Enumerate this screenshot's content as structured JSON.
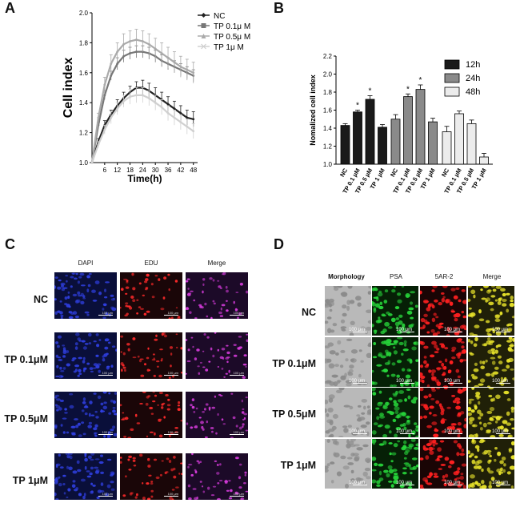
{
  "panels": {
    "a": {
      "letter": "A"
    },
    "b": {
      "letter": "B"
    },
    "c": {
      "letter": "C"
    },
    "d": {
      "letter": "D"
    }
  },
  "chart_data": [
    {
      "type": "line",
      "panel": "A",
      "xlabel": "Time(h)",
      "ylabel": "Cell index",
      "xlim": [
        0,
        50
      ],
      "ylim": [
        1.0,
        2.0
      ],
      "xticks": [
        6,
        12,
        18,
        24,
        30,
        36,
        42,
        48
      ],
      "yticks": [
        1.0,
        1.2,
        1.4,
        1.6,
        1.8,
        2.0
      ],
      "ytick_labels": [
        "1.0",
        "1.2",
        "1.4",
        "1.6",
        "1.8",
        "2.0"
      ],
      "legend_position": "top-right",
      "x": [
        0,
        3,
        6,
        9,
        12,
        15,
        18,
        21,
        24,
        27,
        30,
        33,
        36,
        39,
        42,
        45,
        48
      ],
      "series": [
        {
          "name": "NC",
          "color": "#222222",
          "marker": "diamond",
          "values": [
            1.0,
            1.14,
            1.25,
            1.32,
            1.38,
            1.43,
            1.47,
            1.5,
            1.5,
            1.48,
            1.45,
            1.42,
            1.39,
            1.36,
            1.33,
            1.3,
            1.29
          ],
          "error": [
            0.0,
            0.02,
            0.03,
            0.03,
            0.04,
            0.04,
            0.04,
            0.04,
            0.05,
            0.05,
            0.05,
            0.05,
            0.05,
            0.05,
            0.05,
            0.05,
            0.05
          ]
        },
        {
          "name": "TP 0.1μ M",
          "color": "#777777",
          "marker": "square",
          "values": [
            1.0,
            1.25,
            1.45,
            1.58,
            1.66,
            1.71,
            1.73,
            1.74,
            1.74,
            1.73,
            1.71,
            1.68,
            1.66,
            1.64,
            1.62,
            1.6,
            1.58
          ],
          "error": [
            0.0,
            0.02,
            0.03,
            0.03,
            0.04,
            0.04,
            0.04,
            0.04,
            0.04,
            0.04,
            0.04,
            0.04,
            0.04,
            0.04,
            0.04,
            0.04,
            0.04
          ]
        },
        {
          "name": "TP 0.5μ M",
          "color": "#aaaaaa",
          "marker": "triangle",
          "values": [
            1.0,
            1.3,
            1.52,
            1.66,
            1.74,
            1.79,
            1.81,
            1.82,
            1.81,
            1.79,
            1.76,
            1.73,
            1.7,
            1.67,
            1.64,
            1.62,
            1.6
          ],
          "error": [
            0.0,
            0.03,
            0.05,
            0.06,
            0.06,
            0.07,
            0.07,
            0.07,
            0.07,
            0.07,
            0.07,
            0.07,
            0.07,
            0.07,
            0.07,
            0.07,
            0.07
          ]
        },
        {
          "name": "TP 1μ M",
          "color": "#d0d0d0",
          "marker": "cross",
          "values": [
            1.0,
            1.12,
            1.22,
            1.3,
            1.36,
            1.41,
            1.44,
            1.45,
            1.45,
            1.43,
            1.4,
            1.37,
            1.33,
            1.3,
            1.27,
            1.24,
            1.21
          ],
          "error": [
            0.0,
            0.02,
            0.03,
            0.04,
            0.04,
            0.04,
            0.05,
            0.05,
            0.05,
            0.05,
            0.05,
            0.05,
            0.05,
            0.05,
            0.05,
            0.05,
            0.05
          ]
        }
      ]
    },
    {
      "type": "bar",
      "panel": "B",
      "ylabel": "Nomalized cell index",
      "ylim": [
        1.0,
        2.2
      ],
      "yticks": [
        1.0,
        1.2,
        1.4,
        1.6,
        1.8,
        2.0,
        2.2
      ],
      "ytick_labels": [
        "1.0",
        "1.2",
        "1.4",
        "1.6",
        "1.8",
        "2.0",
        "2.2"
      ],
      "categories": [
        "NC",
        "TP 0.1 μM",
        "TP 0.5 μM",
        "TP 1 μM"
      ],
      "legend_position": "right",
      "significance_marker": "*",
      "series": [
        {
          "name": "12h",
          "color": "#1a1a1a",
          "values": [
            1.43,
            1.58,
            1.72,
            1.41
          ],
          "error": [
            0.02,
            0.02,
            0.04,
            0.03
          ],
          "significant": [
            false,
            true,
            true,
            false
          ]
        },
        {
          "name": "24h",
          "color": "#8a8a8a",
          "values": [
            1.5,
            1.75,
            1.83,
            1.47
          ],
          "error": [
            0.05,
            0.03,
            0.05,
            0.04
          ],
          "significant": [
            false,
            true,
            true,
            false
          ]
        },
        {
          "name": "48h",
          "color": "#ececec",
          "values": [
            1.36,
            1.56,
            1.45,
            1.08
          ],
          "error": [
            0.06,
            0.03,
            0.04,
            0.04
          ],
          "significant": [
            false,
            false,
            false,
            false
          ]
        }
      ]
    }
  ],
  "panel_c": {
    "columns": [
      "DAPI",
      "EDU",
      "Merge"
    ],
    "rows": [
      "NC",
      "TP 0.1μM",
      "TP 0.5μM",
      "TP 1μM"
    ],
    "scale_label": "100 μm",
    "channel_colors": {
      "DAPI": "#2f3fe0",
      "EDU": "#ff2a2a",
      "Merge": "#d23ad8"
    }
  },
  "panel_d": {
    "columns": [
      "Morphology",
      "PSA",
      "5AR-2",
      "Merge"
    ],
    "rows": [
      "NC",
      "TP 0.1μM",
      "TP 0.5μM",
      "TP 1μM"
    ],
    "scale_label": "100  μm",
    "channel_colors": {
      "PSA": "#27d43a",
      "5AR-2": "#ff2020",
      "Merge": "#e6e12a"
    }
  }
}
